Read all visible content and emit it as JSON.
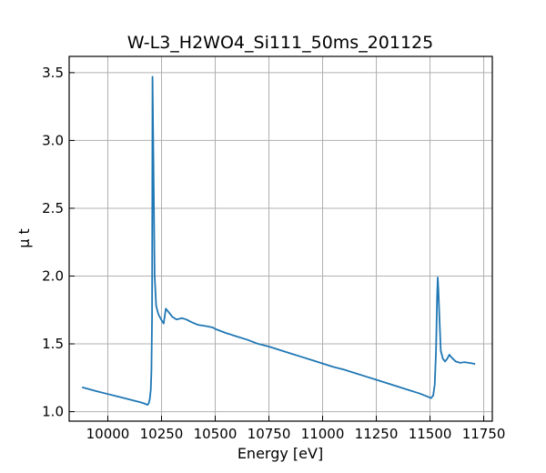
{
  "chart_data": {
    "type": "line",
    "title": "W-L3_H2WO4_Si111_50ms_201125",
    "xlabel": "Energy [eV]",
    "ylabel": "μ t",
    "xlim": [
      9820,
      11790
    ],
    "ylim": [
      0.93,
      3.62
    ],
    "xticks": [
      10000,
      10250,
      10500,
      10750,
      11000,
      11250,
      11500,
      11750
    ],
    "yticks": [
      1.0,
      1.5,
      2.0,
      2.5,
      3.0,
      3.5
    ],
    "xtick_labels": [
      "10000",
      "10250",
      "10500",
      "10750",
      "11000",
      "11250",
      "11500",
      "11750"
    ],
    "ytick_labels": [
      "1.0",
      "1.5",
      "2.0",
      "2.5",
      "3.0",
      "3.5"
    ],
    "grid": true,
    "colors": {
      "line": "#1f77b4"
    },
    "series": [
      {
        "x": [
          9880,
          9950,
          10000,
          10050,
          10100,
          10150,
          10170,
          10185,
          10190,
          10195,
          10200,
          10203,
          10206,
          10208,
          10212,
          10218,
          10225,
          10235,
          10248,
          10260,
          10270,
          10285,
          10300,
          10320,
          10345,
          10365,
          10390,
          10420,
          10460,
          10490,
          10500,
          10550,
          10600,
          10650,
          10700,
          10750,
          10800,
          10850,
          10900,
          10950,
          11000,
          11050,
          11100,
          11150,
          11200,
          11250,
          11300,
          11350,
          11400,
          11450,
          11490,
          11505,
          11515,
          11522,
          11528,
          11533,
          11536,
          11539,
          11545,
          11550,
          11560,
          11570,
          11580,
          11590,
          11600,
          11620,
          11640,
          11660,
          11680,
          11700,
          11710
        ],
        "y": [
          1.18,
          1.15,
          1.13,
          1.11,
          1.09,
          1.07,
          1.06,
          1.05,
          1.06,
          1.09,
          1.16,
          1.3,
          1.7,
          3.47,
          2.9,
          2.0,
          1.78,
          1.72,
          1.68,
          1.65,
          1.76,
          1.73,
          1.7,
          1.68,
          1.69,
          1.68,
          1.66,
          1.64,
          1.63,
          1.62,
          1.61,
          1.58,
          1.555,
          1.53,
          1.5,
          1.48,
          1.455,
          1.43,
          1.405,
          1.38,
          1.355,
          1.33,
          1.31,
          1.285,
          1.26,
          1.235,
          1.21,
          1.185,
          1.16,
          1.135,
          1.11,
          1.1,
          1.12,
          1.2,
          1.45,
          1.85,
          1.99,
          1.9,
          1.65,
          1.45,
          1.39,
          1.37,
          1.39,
          1.42,
          1.4,
          1.37,
          1.36,
          1.365,
          1.36,
          1.355,
          1.35
        ]
      }
    ]
  }
}
